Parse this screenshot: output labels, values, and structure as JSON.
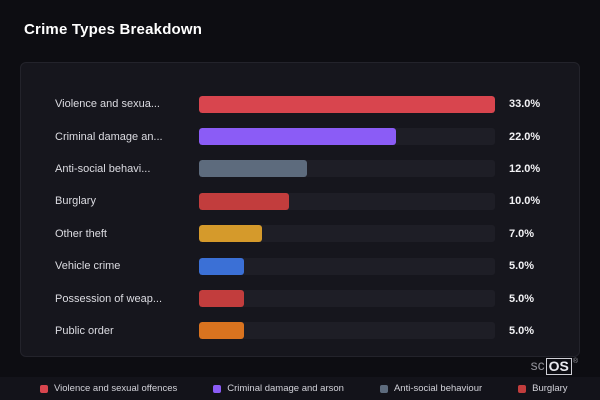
{
  "page": {
    "title": "Crime Types Breakdown",
    "watermark": {
      "prefix": "sc",
      "suffix": "OS",
      "reg": "®"
    }
  },
  "chart_data": {
    "type": "bar",
    "orientation": "horizontal",
    "title": "Crime Types Breakdown",
    "xlim": [
      0,
      33
    ],
    "grid": false,
    "legend_position": "bottom",
    "categories": [
      "Violence and sexual offences",
      "Criminal damage and arson",
      "Anti-social behaviour",
      "Burglary",
      "Other theft",
      "Vehicle crime",
      "Possession of weapons",
      "Public order"
    ],
    "values": [
      33.0,
      22.0,
      12.0,
      10.0,
      7.0,
      5.0,
      5.0,
      5.0
    ],
    "rows": [
      {
        "label": "Violence and sexua...",
        "value": 33.0,
        "value_label": "33.0%",
        "color": "#d8454e"
      },
      {
        "label": "Criminal damage an...",
        "value": 22.0,
        "value_label": "22.0%",
        "color": "#8b5cf6"
      },
      {
        "label": "Anti-social behavi...",
        "value": 12.0,
        "value_label": "12.0%",
        "color": "#5d6b7d"
      },
      {
        "label": "Burglary",
        "value": 10.0,
        "value_label": "10.0%",
        "color": "#c23d3d"
      },
      {
        "label": "Other theft",
        "value": 7.0,
        "value_label": "7.0%",
        "color": "#d59a2b"
      },
      {
        "label": "Vehicle crime",
        "value": 5.0,
        "value_label": "5.0%",
        "color": "#3b70d6"
      },
      {
        "label": "Possession of weap...",
        "value": 5.0,
        "value_label": "5.0%",
        "color": "#c23d3d"
      },
      {
        "label": "Public order",
        "value": 5.0,
        "value_label": "5.0%",
        "color": "#d9731f"
      }
    ],
    "legend": {
      "items": [
        {
          "label": "Violence and sexual offences",
          "color": "#d8454e"
        },
        {
          "label": "Criminal damage and arson",
          "color": "#8b5cf6"
        },
        {
          "label": "Anti-social behaviour",
          "color": "#5d6b7d"
        },
        {
          "label": "Burglary",
          "color": "#c23d3d"
        }
      ]
    },
    "colors": {
      "background": "#0d0d12",
      "card": "#16161d",
      "track": "#1e1e26",
      "text": "#dcdce2"
    }
  }
}
